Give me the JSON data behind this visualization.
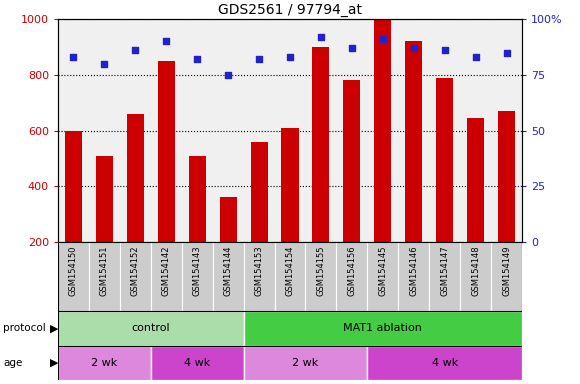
{
  "title": "GDS2561 / 97794_at",
  "samples": [
    "GSM154150",
    "GSM154151",
    "GSM154152",
    "GSM154142",
    "GSM154143",
    "GSM154144",
    "GSM154153",
    "GSM154154",
    "GSM154155",
    "GSM154156",
    "GSM154145",
    "GSM154146",
    "GSM154147",
    "GSM154148",
    "GSM154149"
  ],
  "counts": [
    600,
    510,
    660,
    850,
    510,
    360,
    560,
    610,
    900,
    780,
    1000,
    920,
    790,
    645,
    670
  ],
  "percentile": [
    83,
    80,
    86,
    90,
    82,
    75,
    82,
    83,
    92,
    87,
    91,
    87,
    86,
    83,
    85
  ],
  "ylim_left": [
    200,
    1000
  ],
  "ylim_right": [
    0,
    100
  ],
  "yticks_left": [
    200,
    400,
    600,
    800,
    1000
  ],
  "yticks_right": [
    0,
    25,
    50,
    75,
    100
  ],
  "ytick_right_labels": [
    "0",
    "25",
    "50",
    "75",
    "100%"
  ],
  "bar_color": "#cc0000",
  "dot_color": "#2222cc",
  "bg_color": "#ffffff",
  "plot_bg": "#f0f0f0",
  "label_box_color": "#cccccc",
  "protocol_groups": [
    {
      "label": "control",
      "start": 0,
      "end": 6,
      "color": "#aaddaa"
    },
    {
      "label": "MAT1 ablation",
      "start": 6,
      "end": 15,
      "color": "#44cc44"
    }
  ],
  "age_groups": [
    {
      "label": "2 wk",
      "start": 0,
      "end": 3,
      "color": "#dd88dd"
    },
    {
      "label": "4 wk",
      "start": 3,
      "end": 6,
      "color": "#cc44cc"
    },
    {
      "label": "2 wk",
      "start": 6,
      "end": 10,
      "color": "#dd88dd"
    },
    {
      "label": "4 wk",
      "start": 10,
      "end": 15,
      "color": "#cc44cc"
    }
  ],
  "tick_color_left": "#cc0000",
  "tick_color_right": "#2222cc",
  "fig_width": 5.8,
  "fig_height": 3.84,
  "dpi": 100
}
